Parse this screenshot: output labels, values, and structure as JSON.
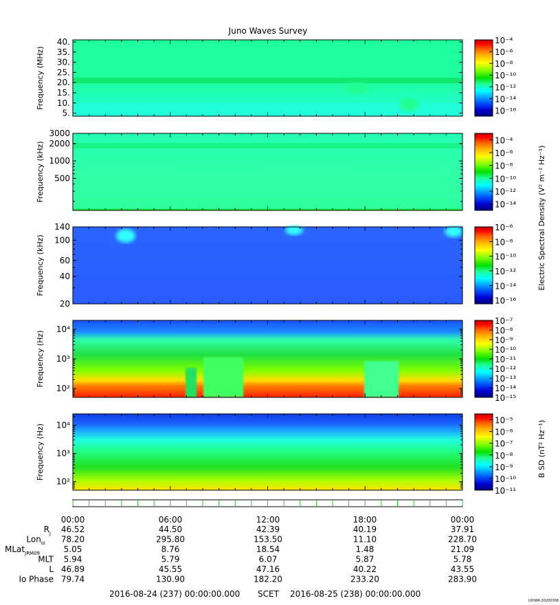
{
  "title": "Juno Waves Survey",
  "watermark": "UIOWA 20200306",
  "colors": {
    "frame": "#000000",
    "tick_line_green": "#2ec82e"
  },
  "colormap": [
    "#00007f",
    "#0000d0",
    "#0050ff",
    "#00a8ff",
    "#00ffff",
    "#20ff9a",
    "#00e000",
    "#80ff00",
    "#ffff00",
    "#ffb000",
    "#ff6000",
    "#ff0000",
    "#c00000"
  ],
  "chart_data": [
    {
      "id": "panel-1",
      "type": "heatmap",
      "ylabel": "Frequency (MHz)",
      "yscale": "linear",
      "ylim": [
        3.5,
        41
      ],
      "yticks": [
        5,
        10,
        15,
        20,
        25,
        30,
        35,
        40
      ],
      "ytick_labels": [
        "5.",
        "10.",
        "15.",
        "20.",
        "25.",
        "30.",
        "35.",
        "40."
      ],
      "colorbar": {
        "label": "",
        "ticks": [
          -4,
          -6,
          -8,
          -10,
          -12,
          -14,
          -16
        ],
        "range": [
          -17,
          -4
        ]
      },
      "description": "broadband background ~1e-12, enhanced band near 21 MHz"
    },
    {
      "id": "panel-2",
      "type": "heatmap",
      "ylabel": "Frequency (kHz)",
      "yscale": "log",
      "ylim": [
        140,
        3000
      ],
      "yticks": [
        500,
        1000,
        2000,
        3000
      ],
      "ytick_labels": [
        "500",
        "1000",
        "2000",
        "3000"
      ],
      "colorbar": {
        "label": "Electric Spectral Density (V² m⁻² Hz⁻¹)",
        "ticks": [
          -4,
          -6,
          -8,
          -10,
          -12,
          -14
        ],
        "range": [
          -15,
          -3
        ]
      },
      "description": "uniform background ~1e-12, brighter band near 1.8 MHz"
    },
    {
      "id": "panel-3",
      "type": "heatmap",
      "ylabel": "Frequency (kHz)",
      "yscale": "log",
      "ylim": [
        20,
        140
      ],
      "yticks": [
        20,
        40,
        60,
        100,
        140
      ],
      "ytick_labels": [
        "20",
        "40",
        "60",
        "100",
        "140"
      ],
      "colorbar": {
        "label": "",
        "ticks": [
          -6,
          -8,
          -10,
          -12,
          -14,
          -16
        ],
        "range": [
          -16.5,
          -6
        ]
      },
      "description": "background ~1e-14, bright blobs near 100-140 kHz"
    },
    {
      "id": "panel-4",
      "type": "heatmap",
      "ylabel": "Frequency (Hz)",
      "yscale": "log",
      "ylim": [
        50,
        20000
      ],
      "yticks": [
        100,
        1000,
        10000
      ],
      "ytick_labels": [
        "10²",
        "10³",
        "10⁴"
      ],
      "colorbar": {
        "label": "",
        "ticks": [
          -7,
          -8,
          -9,
          -10,
          -11,
          -12,
          -13,
          -14,
          -15
        ],
        "range": [
          -15,
          -7
        ]
      },
      "description": "intense emission below ~400 Hz with gaps"
    },
    {
      "id": "panel-5",
      "type": "heatmap",
      "ylabel": "Frequency (Hz)",
      "yscale": "log",
      "ylim": [
        50,
        25000
      ],
      "yticks": [
        100,
        1000,
        10000
      ],
      "ytick_labels": [
        "10²",
        "10³",
        "10⁴"
      ],
      "colorbar": {
        "label": "B SD (nT² Hz⁻¹)",
        "ticks": [
          -5,
          -6,
          -7,
          -8,
          -9,
          -10,
          -11
        ],
        "range": [
          -11,
          -4.5
        ]
      },
      "description": "magnetic spectral density, stronger at low frequency"
    }
  ],
  "time_axis": {
    "labels": [
      "00:00",
      "06:00",
      "12:00",
      "18:00",
      "00:00"
    ],
    "major_hours": [
      0,
      6,
      12,
      18,
      24
    ],
    "minor_hours": [
      1,
      2,
      3,
      4,
      5,
      7,
      8,
      9,
      10,
      11,
      13,
      14,
      15,
      16,
      17,
      19,
      20,
      21,
      22,
      23
    ],
    "total_hours": 24
  },
  "ephemeris": {
    "rows": [
      {
        "label_main": "R",
        "label_sub": "J",
        "values": [
          "46.52",
          "44.50",
          "42.39",
          "40.19",
          "37.91"
        ]
      },
      {
        "label_main": "Lon",
        "label_sub": "III",
        "values": [
          "78.20",
          "295.80",
          "153.50",
          "11.10",
          "228.70"
        ]
      },
      {
        "label_main": "MLat",
        "label_sub": "JRM09",
        "values": [
          "5.05",
          "8.76",
          "18.54",
          "1.48",
          "21.09"
        ]
      },
      {
        "label_main": "MLT",
        "label_sub": "",
        "values": [
          "5.94",
          "5.79",
          "6.07",
          "5.87",
          "5.78"
        ]
      },
      {
        "label_main": "L",
        "label_sub": "",
        "values": [
          "46.89",
          "45.55",
          "47.16",
          "40.22",
          "43.55"
        ]
      },
      {
        "label_main": "Io Phase",
        "label_sub": "",
        "values": [
          "79.74",
          "130.90",
          "182.20",
          "233.20",
          "283.90"
        ]
      }
    ]
  },
  "footer": {
    "start": "2016-08-24 (237) 00:00:00.000",
    "scet": "SCET",
    "end": "2016-08-25 (238) 00:00:00.000"
  }
}
